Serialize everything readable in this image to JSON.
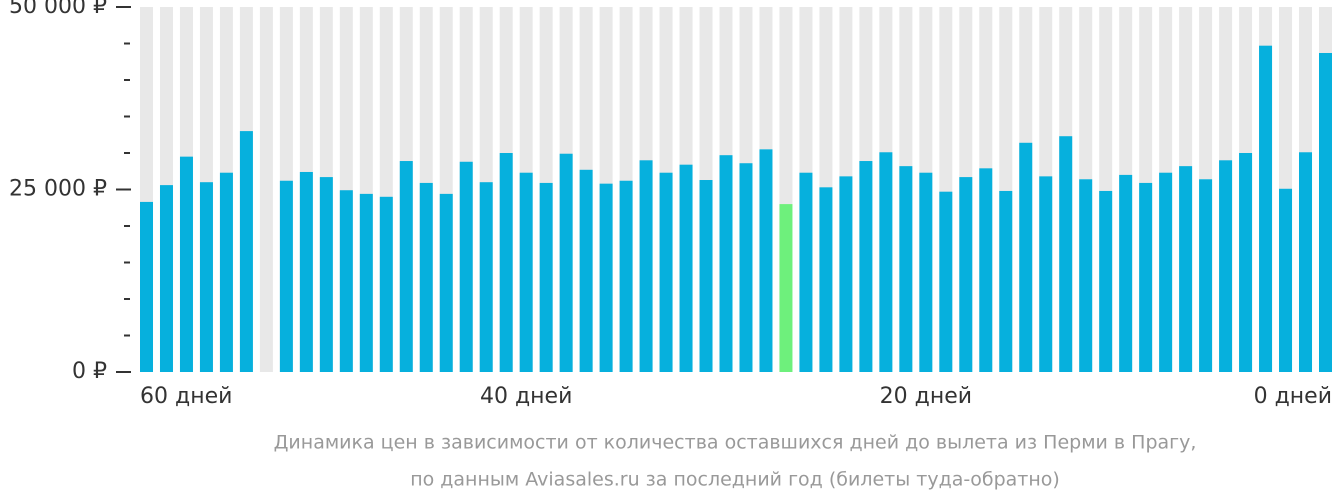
{
  "chart_data": {
    "type": "bar",
    "categories": [
      "60 дней",
      null,
      null,
      null,
      null,
      null,
      null,
      null,
      null,
      null,
      null,
      null,
      null,
      null,
      null,
      null,
      null,
      null,
      null,
      "40 дней",
      null,
      null,
      null,
      null,
      null,
      null,
      null,
      null,
      null,
      null,
      null,
      null,
      null,
      null,
      null,
      null,
      null,
      null,
      null,
      "20 дней",
      null,
      null,
      null,
      null,
      null,
      null,
      null,
      null,
      null,
      null,
      null,
      null,
      null,
      null,
      null,
      null,
      null,
      null,
      null,
      "0 дней"
    ],
    "values": [
      23300,
      25600,
      29500,
      26000,
      27300,
      33000,
      null,
      26200,
      27400,
      26700,
      24900,
      24400,
      24000,
      28900,
      25900,
      24400,
      28800,
      26000,
      30000,
      27300,
      25900,
      29900,
      27700,
      25800,
      26200,
      29000,
      27300,
      28400,
      26300,
      29700,
      28600,
      30500,
      23000,
      27300,
      25300,
      26800,
      28900,
      30100,
      28200,
      27300,
      24700,
      26700,
      27900,
      24800,
      31400,
      26800,
      32300,
      26400,
      24800,
      27000,
      25900,
      27300,
      28200,
      26400,
      29000,
      30000,
      44700,
      25100,
      30100,
      43700
    ],
    "color": "#06b0dd",
    "highlight": {
      "index": 32,
      "color": "#6ef07c"
    },
    "background_color": "#e8e8e8",
    "ylim": [
      0,
      50000
    ],
    "yticks": [
      {
        "value": 0,
        "label": "0 ₽"
      },
      {
        "value": 25000,
        "label": "25 000 ₽"
      },
      {
        "value": 50000,
        "label": "50 000 ₽"
      }
    ],
    "minor_yticks": [
      5000,
      10000,
      15000,
      20000,
      30000,
      35000,
      40000,
      45000
    ],
    "caption": [
      "Динамика цен в зависимости от количества оставшихся дней до вылета из Перми в Прагу,",
      "по данным Aviasales.ru за последний год (билеты туда-обратно)"
    ]
  }
}
